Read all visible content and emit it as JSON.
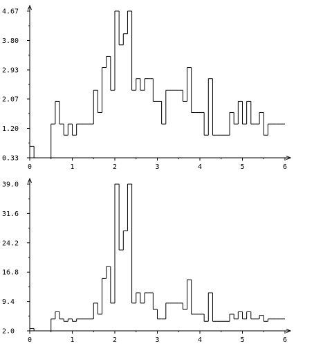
{
  "chart_data": [
    {
      "type": "line",
      "step": true,
      "xlim": [
        0,
        6
      ],
      "ylim": [
        0.33,
        4.67
      ],
      "xticks": [
        0,
        1,
        2,
        3,
        4,
        5,
        6
      ],
      "xtick_labels": [
        "0",
        "1",
        "2",
        "3",
        "4",
        "5",
        "6"
      ],
      "yticks": [
        0.33,
        1.2,
        2.07,
        2.93,
        3.8,
        4.67
      ],
      "ytick_labels": [
        "0.33",
        "1.20",
        "2.07",
        "2.93",
        "3.80",
        "4.67"
      ],
      "bin_width": 0.1,
      "x": [
        0.0,
        0.1,
        0.2,
        0.3,
        0.4,
        0.5,
        0.6,
        0.7,
        0.8,
        0.9,
        1.0,
        1.1,
        1.2,
        1.3,
        1.4,
        1.5,
        1.6,
        1.7,
        1.8,
        1.9,
        2.0,
        2.1,
        2.2,
        2.3,
        2.4,
        2.5,
        2.6,
        2.7,
        2.8,
        2.9,
        3.0,
        3.1,
        3.2,
        3.3,
        3.4,
        3.5,
        3.6,
        3.7,
        3.8,
        3.9,
        4.0,
        4.1,
        4.2,
        4.3,
        4.4,
        4.5,
        4.6,
        4.7,
        4.8,
        4.9,
        5.0,
        5.1,
        5.2,
        5.3,
        5.4,
        5.5,
        5.6,
        5.7,
        5.8,
        5.9
      ],
      "values": [
        0.67,
        0.33,
        0.33,
        0.33,
        0.33,
        1.33,
        2.0,
        1.33,
        1.0,
        1.33,
        1.0,
        1.33,
        1.33,
        1.33,
        1.33,
        2.33,
        1.67,
        3.0,
        3.33,
        2.33,
        4.67,
        3.67,
        4.0,
        4.67,
        2.33,
        2.67,
        2.33,
        2.67,
        2.67,
        2.0,
        2.0,
        1.33,
        2.33,
        2.33,
        2.33,
        2.33,
        2.0,
        3.0,
        1.67,
        1.67,
        1.67,
        1.0,
        2.67,
        1.0,
        1.0,
        1.0,
        1.0,
        1.67,
        1.33,
        2.0,
        1.33,
        2.0,
        1.33,
        1.33,
        1.67,
        1.0,
        1.33,
        1.33,
        1.33,
        1.33
      ],
      "grid": false
    },
    {
      "type": "line",
      "step": true,
      "xlim": [
        0,
        6
      ],
      "ylim": [
        2.0,
        39.0
      ],
      "xticks": [
        0,
        1,
        2,
        3,
        4,
        5,
        6
      ],
      "xtick_labels": [
        "0",
        "1",
        "2",
        "3",
        "4",
        "5",
        "6"
      ],
      "yticks": [
        2.0,
        9.4,
        16.8,
        24.2,
        31.6,
        39.0
      ],
      "ytick_labels": [
        "2.0",
        "9.4",
        "16.8",
        "24.2",
        "31.6",
        "39.0"
      ],
      "bin_width": 0.1,
      "x": [
        0.0,
        0.1,
        0.2,
        0.3,
        0.4,
        0.5,
        0.6,
        0.7,
        0.8,
        0.9,
        1.0,
        1.1,
        1.2,
        1.3,
        1.4,
        1.5,
        1.6,
        1.7,
        1.8,
        1.9,
        2.0,
        2.1,
        2.2,
        2.3,
        2.4,
        2.5,
        2.6,
        2.7,
        2.8,
        2.9,
        3.0,
        3.1,
        3.2,
        3.3,
        3.4,
        3.5,
        3.6,
        3.7,
        3.8,
        3.9,
        4.0,
        4.1,
        4.2,
        4.3,
        4.4,
        4.5,
        4.6,
        4.7,
        4.8,
        4.9,
        5.0,
        5.1,
        5.2,
        5.3,
        5.4,
        5.5,
        5.6,
        5.7,
        5.8,
        5.9
      ],
      "values": [
        2.6,
        2.0,
        2.0,
        2.0,
        2.0,
        5.0,
        6.8,
        5.0,
        4.4,
        5.0,
        4.4,
        5.0,
        5.0,
        5.0,
        5.0,
        9.0,
        6.2,
        15.2,
        18.2,
        9.0,
        39.0,
        22.4,
        27.2,
        39.0,
        9.0,
        11.6,
        9.0,
        11.6,
        11.6,
        7.4,
        5.0,
        5.0,
        9.0,
        9.0,
        9.0,
        9.0,
        7.4,
        14.9,
        6.2,
        6.2,
        6.2,
        4.4,
        11.6,
        4.4,
        4.4,
        4.4,
        4.4,
        6.2,
        5.0,
        6.8,
        5.0,
        6.8,
        5.0,
        5.0,
        5.9,
        4.4,
        5.0,
        5.0,
        5.0,
        5.0
      ],
      "grid": false
    }
  ]
}
